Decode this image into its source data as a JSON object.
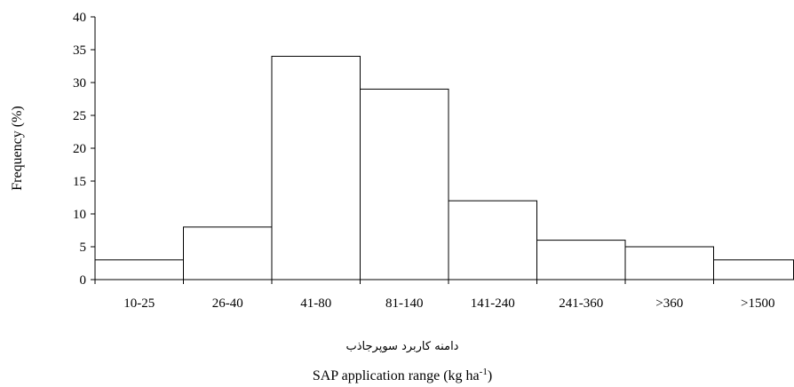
{
  "chart_data": {
    "type": "bar",
    "categories": [
      "10-25",
      "26-40",
      "41-80",
      "81-140",
      "141-240",
      "241-360",
      ">360",
      ">1500"
    ],
    "values": [
      3,
      8,
      34,
      29,
      12,
      6,
      5,
      3
    ],
    "ylabel": "Frequency (%)",
    "xlabel_persian": "دامنه کاربرد سوپرجاذب",
    "xlabel_base": "SAP application  range  (kg ha",
    "xlabel_sup": "-1",
    "xlabel_close": ")",
    "ylim": [
      0,
      40
    ],
    "yticks": [
      0,
      5,
      10,
      15,
      20,
      25,
      30,
      35,
      40
    ],
    "grid": false,
    "legend": "none",
    "colors": {
      "bar_fill": "#ffffff",
      "bar_stroke": "#000000",
      "axis": "#000000"
    }
  }
}
